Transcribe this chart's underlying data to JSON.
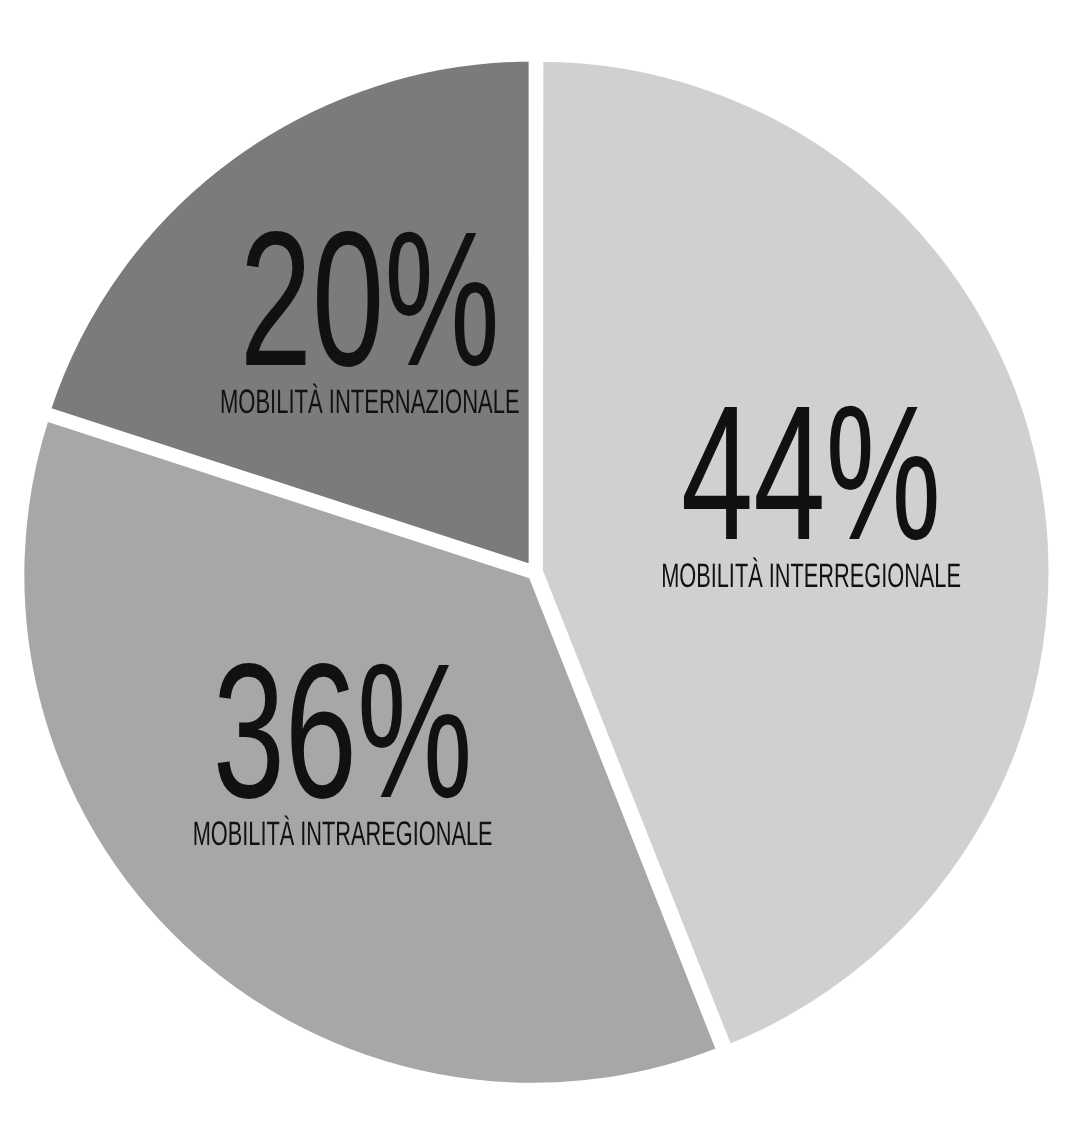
{
  "chart_data": {
    "type": "pie",
    "categories": [
      "MOBILITÀ INTERREGIONALE",
      "MOBILITÀ INTRAREGIONALE",
      "MOBILITÀ INTERNAZIONALE"
    ],
    "values": [
      44,
      36,
      20
    ],
    "colors": [
      "#d0d0d0",
      "#a7a7a7",
      "#7b7b7b"
    ],
    "value_labels": [
      "44%",
      "36%",
      "20%"
    ],
    "legend": false
  }
}
